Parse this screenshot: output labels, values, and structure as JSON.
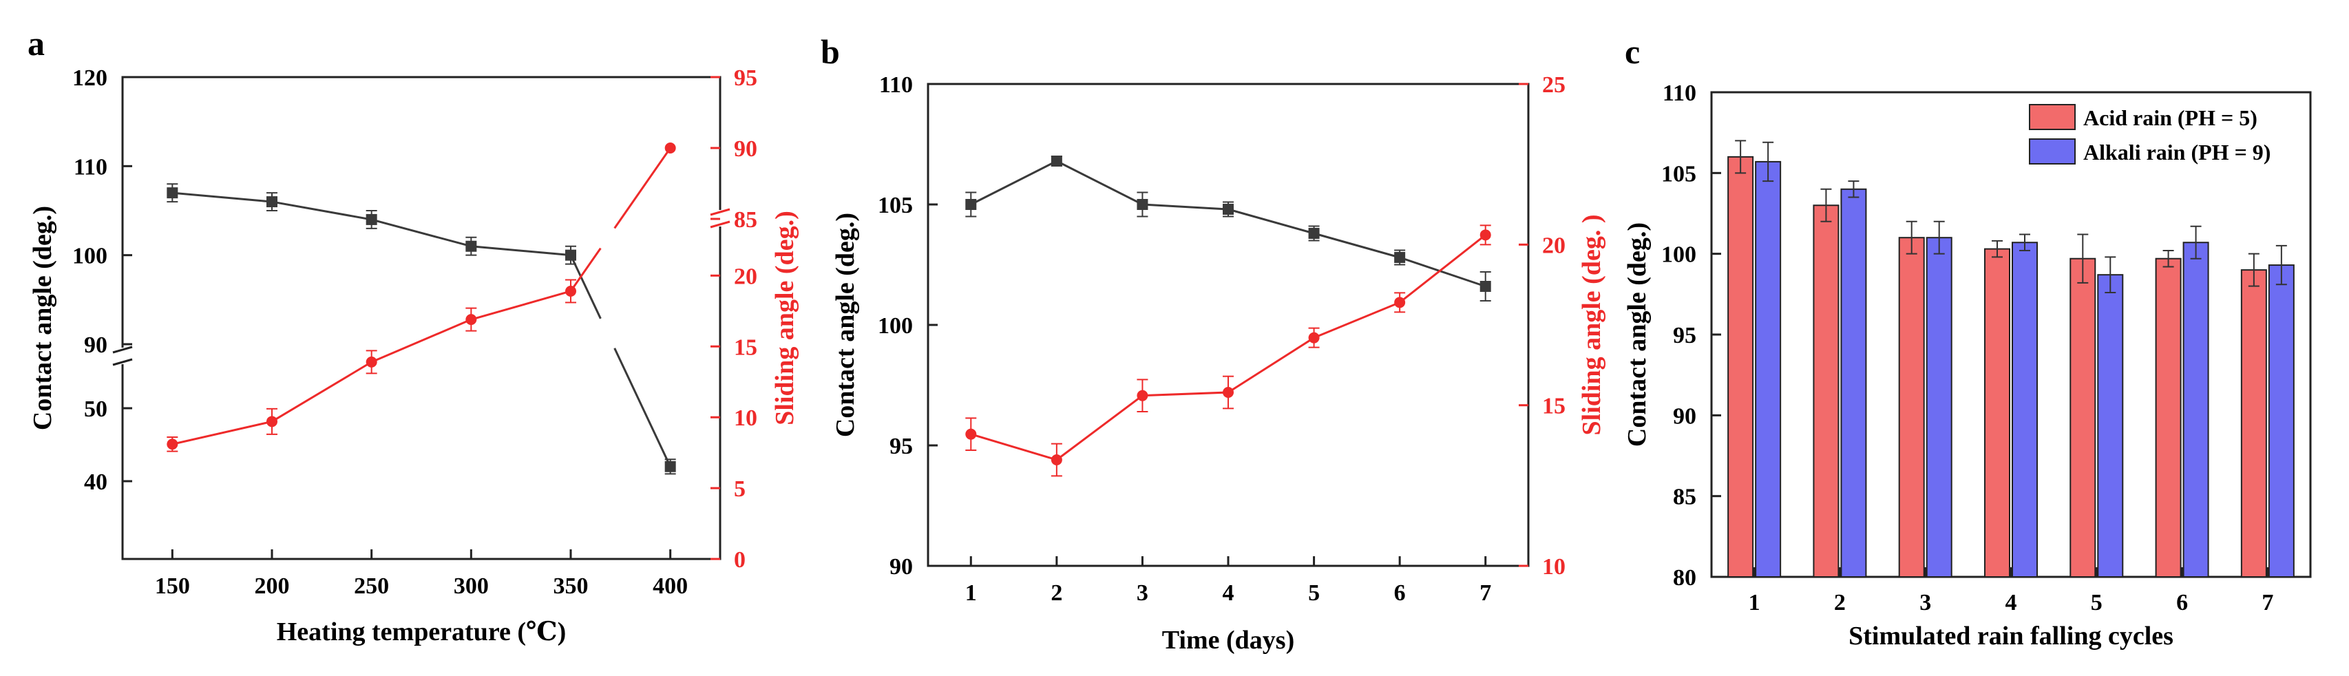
{
  "colors": {
    "black": "#3a3a3a",
    "red": "#ee2a2a",
    "acid": "#f26b6b",
    "alkali": "#6d6df2"
  },
  "chart_data": [
    {
      "panel": "a",
      "type": "line",
      "xlabel": "Heating temperature (℃)",
      "ylabel_left": "Contact angle (deg.)",
      "ylabel_right": "Sliding angle (deg.)",
      "x": [
        150,
        200,
        250,
        300,
        350,
        400
      ],
      "x_ticks": [
        "150",
        "200",
        "250",
        "300",
        "350",
        "400"
      ],
      "left_ticks": [
        "40",
        "50",
        "90",
        "100",
        "110",
        "120"
      ],
      "right_ticks": [
        "0",
        "5",
        "10",
        "15",
        "20",
        "85",
        "90",
        "95"
      ],
      "left_axis_break": [
        55,
        90
      ],
      "right_axis_break": [
        24,
        85
      ],
      "series": [
        {
          "name": "Contact angle",
          "axis": "left",
          "marker": "square",
          "values": [
            107,
            106,
            104,
            101,
            100,
            42
          ],
          "errors": [
            1.0,
            1.0,
            1.0,
            1.0,
            1.0,
            1.0
          ]
        },
        {
          "name": "Sliding angle",
          "axis": "right",
          "marker": "circle",
          "values": [
            8.1,
            9.7,
            13.9,
            16.9,
            18.9,
            90
          ],
          "errors": [
            0.5,
            0.9,
            0.8,
            0.8,
            0.8,
            0
          ]
        }
      ]
    },
    {
      "panel": "b",
      "type": "line",
      "xlabel": "Time (days)",
      "ylabel_left": "Contact angle (deg.)",
      "ylabel_right": "Sliding angle (deg. )",
      "x": [
        1,
        2,
        3,
        4,
        5,
        6,
        7
      ],
      "x_ticks": [
        "1",
        "2",
        "3",
        "4",
        "5",
        "6",
        "7"
      ],
      "left_ticks": [
        "90",
        "95",
        "100",
        "105",
        "110"
      ],
      "right_ticks": [
        "10",
        "15",
        "20",
        "25"
      ],
      "ylim_left": [
        90,
        110
      ],
      "ylim_right": [
        10,
        25
      ],
      "series": [
        {
          "name": "Contact angle",
          "axis": "left",
          "marker": "square",
          "values": [
            105.0,
            106.8,
            105.0,
            104.8,
            103.8,
            102.8,
            101.6
          ],
          "errors": [
            0.5,
            0.2,
            0.5,
            0.3,
            0.3,
            0.3,
            0.6
          ]
        },
        {
          "name": "Sliding angle",
          "axis": "right",
          "marker": "circle",
          "values": [
            14.1,
            13.3,
            15.3,
            15.4,
            17.1,
            18.2,
            20.3
          ],
          "errors": [
            0.5,
            0.5,
            0.5,
            0.5,
            0.3,
            0.3,
            0.3
          ]
        }
      ]
    },
    {
      "panel": "c",
      "type": "bar",
      "xlabel": "Stimulated rain falling cycles",
      "ylabel": "Contact angle (deg.)",
      "categories": [
        "1",
        "2",
        "3",
        "4",
        "5",
        "6",
        "7"
      ],
      "y_ticks": [
        "80",
        "85",
        "90",
        "95",
        "100",
        "105",
        "110"
      ],
      "ylim": [
        80,
        110
      ],
      "legend_position": "top-right",
      "series": [
        {
          "name": "Acid rain (PH = 5)",
          "values": [
            106.0,
            103.0,
            101.0,
            100.3,
            99.7,
            99.7,
            99.0
          ],
          "errors": [
            1.0,
            1.0,
            1.0,
            0.5,
            1.5,
            0.5,
            1.0
          ]
        },
        {
          "name": "Alkali rain (PH = 9)",
          "values": [
            105.7,
            104.0,
            101.0,
            100.7,
            98.7,
            100.7,
            99.3
          ],
          "errors": [
            1.2,
            0.5,
            1.0,
            0.5,
            1.1,
            1.0,
            1.2
          ]
        }
      ]
    }
  ]
}
